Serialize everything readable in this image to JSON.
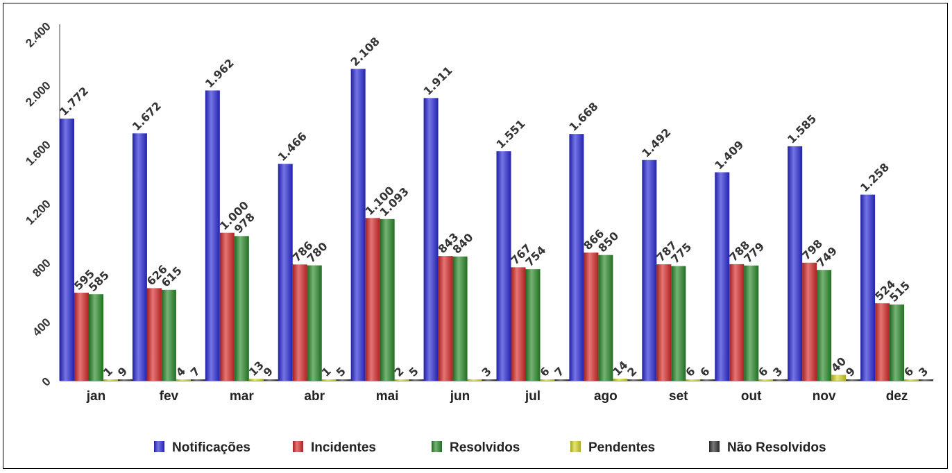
{
  "chart_data": {
    "type": "bar",
    "categories": [
      "jan",
      "fev",
      "mar",
      "abr",
      "mai",
      "jun",
      "jul",
      "ago",
      "set",
      "out",
      "nov",
      "dez"
    ],
    "ylim": [
      0,
      2400
    ],
    "yticks": [
      0,
      400,
      800,
      1200,
      1600,
      2000,
      2400
    ],
    "ytick_labels": [
      "0",
      "400",
      "800",
      "1.200",
      "1.600",
      "2.000",
      "2.400"
    ],
    "grid": false,
    "legend_position": "bottom",
    "series": [
      {
        "name": "Notificações",
        "color": "#2b2bd8",
        "values": [
          1772,
          1672,
          1962,
          1466,
          2108,
          1911,
          1551,
          1668,
          1492,
          1409,
          1585,
          1258
        ],
        "labels": [
          "1.772",
          "1.672",
          "1.962",
          "1.466",
          "2.108",
          "1.911",
          "1.551",
          "1.668",
          "1.492",
          "1.409",
          "1.585",
          "1.258"
        ]
      },
      {
        "name": "Incidentes",
        "color": "#d82b2b",
        "values": [
          595,
          626,
          1000,
          786,
          1100,
          843,
          767,
          866,
          787,
          788,
          798,
          524
        ],
        "labels": [
          "595",
          "626",
          "1.000",
          "786",
          "1.100",
          "843",
          "767",
          "866",
          "787",
          "788",
          "798",
          "524"
        ]
      },
      {
        "name": "Resolvidos",
        "color": "#2b8a2b",
        "values": [
          585,
          615,
          978,
          780,
          1093,
          840,
          754,
          850,
          775,
          779,
          749,
          515
        ],
        "labels": [
          "585",
          "615",
          "978",
          "780",
          "1.093",
          "840",
          "754",
          "850",
          "775",
          "779",
          "749",
          "515"
        ]
      },
      {
        "name": "Pendentes",
        "color": "#d8d82b",
        "values": [
          1,
          4,
          13,
          1,
          2,
          0,
          6,
          14,
          6,
          6,
          40,
          6
        ],
        "labels": [
          "1",
          "4",
          "13",
          "1",
          "2",
          "",
          "6",
          "14",
          "6",
          "6",
          "40",
          "6"
        ]
      },
      {
        "name": "Não Resolvidos",
        "color": "#333333",
        "values": [
          9,
          7,
          9,
          5,
          5,
          3,
          7,
          2,
          6,
          3,
          9,
          3
        ],
        "labels": [
          "9",
          "7",
          "9",
          "5",
          "5",
          "3",
          "7",
          "2",
          "6",
          "3",
          "9",
          "3"
        ]
      }
    ]
  }
}
